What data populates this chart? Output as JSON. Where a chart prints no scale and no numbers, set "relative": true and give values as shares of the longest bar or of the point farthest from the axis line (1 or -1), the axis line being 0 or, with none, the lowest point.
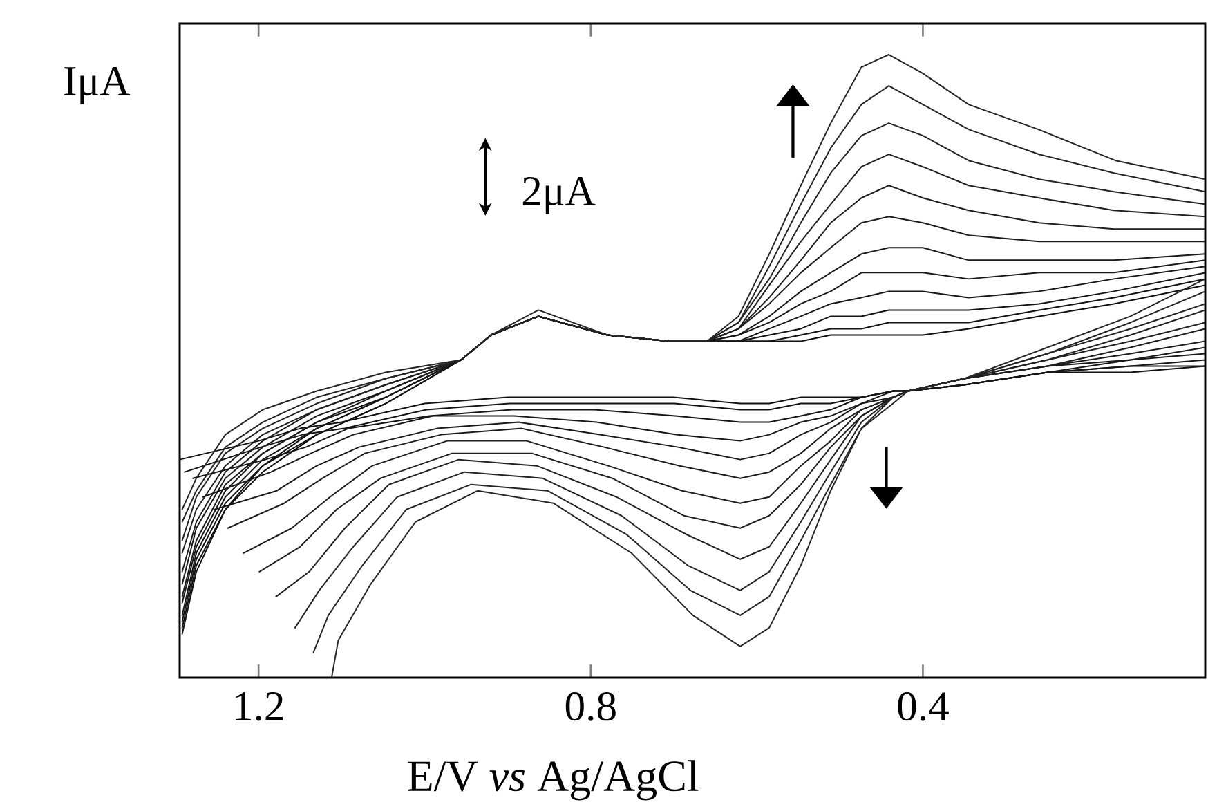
{
  "chart_data": {
    "type": "line",
    "relative": true,
    "xlabel": "E/V *vs* Ag/AgCl",
    "ylabel": "IμA",
    "xlim": [
      1.295,
      0.06
    ],
    "xticks": [
      1.2,
      0.8,
      0.4
    ],
    "annotations": [
      "2μA"
    ],
    "series": [
      {
        "color": "#101010",
        "x": [
          0.06,
          0.17,
          0.26,
          0.345,
          0.4,
          0.441,
          0.474,
          0.511,
          0.547,
          0.585,
          0.622,
          0.66,
          0.705,
          0.78,
          0.863,
          0.92,
          0.956,
          1.047,
          1.13,
          1.195,
          1.24,
          1.275,
          1.292
        ],
        "values": [
          0.63,
          0.6,
          0.58,
          0.56,
          0.55,
          0.55,
          0.55,
          0.55,
          0.54,
          0.54,
          0.54,
          0.54,
          0.54,
          0.55,
          0.58,
          0.55,
          0.51,
          0.44,
          0.39,
          0.33,
          0.27,
          0.17,
          0.07
        ]
      },
      {
        "color": "#111111",
        "x": [
          1.295,
          1.2,
          1.15,
          1.1,
          1.0,
          0.9,
          0.8,
          0.7,
          0.62,
          0.585,
          0.547,
          0.511,
          0.474,
          0.436,
          0.418,
          0.35,
          0.25,
          0.15,
          0.06
        ],
        "values": [
          0.35,
          0.38,
          0.4,
          0.41,
          0.44,
          0.45,
          0.45,
          0.45,
          0.44,
          0.44,
          0.45,
          0.45,
          0.45,
          0.46,
          0.46,
          0.47,
          0.49,
          0.49,
          0.5
        ]
      },
      {
        "color": "#121212",
        "x": [
          0.06,
          0.17,
          0.26,
          0.345,
          0.4,
          0.441,
          0.474,
          0.511,
          0.547,
          0.585,
          0.622,
          0.66,
          0.705,
          0.78,
          0.863,
          0.92,
          0.956,
          1.047,
          1.13,
          1.195,
          1.24,
          1.275,
          1.292
        ],
        "values": [
          0.64,
          0.61,
          0.59,
          0.57,
          0.57,
          0.57,
          0.56,
          0.56,
          0.55,
          0.54,
          0.54,
          0.54,
          0.54,
          0.55,
          0.58,
          0.55,
          0.51,
          0.44,
          0.39,
          0.34,
          0.27,
          0.18,
          0.08
        ]
      },
      {
        "color": "#131313",
        "x": [
          1.289,
          1.197,
          1.147,
          1.097,
          0.998,
          0.898,
          0.798,
          0.699,
          0.62,
          0.585,
          0.547,
          0.511,
          0.474,
          0.436,
          0.418,
          0.35,
          0.25,
          0.15,
          0.06
        ],
        "values": [
          0.33,
          0.37,
          0.39,
          0.4,
          0.43,
          0.44,
          0.44,
          0.44,
          0.43,
          0.43,
          0.44,
          0.44,
          0.45,
          0.46,
          0.46,
          0.47,
          0.49,
          0.5,
          0.5
        ]
      },
      {
        "color": "#141414",
        "x": [
          0.06,
          0.17,
          0.26,
          0.345,
          0.4,
          0.441,
          0.474,
          0.511,
          0.547,
          0.585,
          0.622,
          0.66,
          0.705,
          0.78,
          0.863,
          0.92,
          0.956,
          1.047,
          1.13,
          1.195,
          1.24,
          1.275,
          1.292
        ],
        "values": [
          0.65,
          0.62,
          0.6,
          0.59,
          0.59,
          0.59,
          0.58,
          0.58,
          0.56,
          0.55,
          0.54,
          0.54,
          0.54,
          0.55,
          0.58,
          0.55,
          0.51,
          0.45,
          0.4,
          0.34,
          0.28,
          0.19,
          0.09
        ]
      },
      {
        "color": "#151515",
        "x": [
          1.279,
          1.192,
          1.143,
          1.092,
          0.994,
          0.895,
          0.796,
          0.698,
          0.62,
          0.585,
          0.547,
          0.511,
          0.474,
          0.436,
          0.418,
          0.35,
          0.25,
          0.15,
          0.06
        ],
        "values": [
          0.32,
          0.35,
          0.37,
          0.4,
          0.42,
          0.43,
          0.43,
          0.42,
          0.41,
          0.41,
          0.42,
          0.43,
          0.45,
          0.46,
          0.46,
          0.47,
          0.49,
          0.5,
          0.51
        ]
      },
      {
        "color": "#161616",
        "x": [
          0.06,
          0.17,
          0.26,
          0.345,
          0.4,
          0.441,
          0.474,
          0.511,
          0.547,
          0.585,
          0.622,
          0.66,
          0.705,
          0.78,
          0.863,
          0.92,
          0.956,
          1.047,
          1.13,
          1.195,
          1.24,
          1.275,
          1.292
        ],
        "values": [
          0.66,
          0.64,
          0.62,
          0.61,
          0.62,
          0.62,
          0.61,
          0.6,
          0.58,
          0.56,
          0.54,
          0.54,
          0.54,
          0.55,
          0.58,
          0.55,
          0.51,
          0.45,
          0.4,
          0.35,
          0.29,
          0.2,
          0.1
        ]
      },
      {
        "color": "#171717",
        "x": [
          1.267,
          1.185,
          1.137,
          1.086,
          0.99,
          0.892,
          0.793,
          0.697,
          0.62,
          0.585,
          0.547,
          0.511,
          0.474,
          0.436,
          0.418,
          0.35,
          0.25,
          0.15,
          0.06
        ],
        "values": [
          0.29,
          0.33,
          0.36,
          0.39,
          0.42,
          0.42,
          0.41,
          0.39,
          0.38,
          0.39,
          0.41,
          0.42,
          0.44,
          0.46,
          0.46,
          0.47,
          0.49,
          0.51,
          0.52
        ]
      },
      {
        "color": "#181818",
        "x": [
          0.06,
          0.17,
          0.26,
          0.345,
          0.4,
          0.441,
          0.474,
          0.511,
          0.547,
          0.585,
          0.622,
          0.66,
          0.705,
          0.78,
          0.863,
          0.92,
          0.956,
          1.047,
          1.13,
          1.195,
          1.24,
          1.275,
          1.292
        ],
        "values": [
          0.67,
          0.65,
          0.65,
          0.64,
          0.65,
          0.65,
          0.65,
          0.62,
          0.6,
          0.57,
          0.55,
          0.54,
          0.54,
          0.55,
          0.58,
          0.55,
          0.51,
          0.45,
          0.41,
          0.36,
          0.3,
          0.21,
          0.12
        ]
      },
      {
        "color": "#191919",
        "x": [
          1.253,
          1.178,
          1.13,
          1.079,
          0.985,
          0.887,
          0.789,
          0.695,
          0.62,
          0.585,
          0.547,
          0.511,
          0.474,
          0.436,
          0.418,
          0.35,
          0.25,
          0.15,
          0.06
        ],
        "values": [
          0.27,
          0.3,
          0.34,
          0.37,
          0.4,
          0.41,
          0.39,
          0.37,
          0.35,
          0.36,
          0.39,
          0.41,
          0.44,
          0.45,
          0.46,
          0.48,
          0.5,
          0.51,
          0.53
        ]
      },
      {
        "color": "#1a1a1a",
        "x": [
          0.06,
          0.17,
          0.26,
          0.345,
          0.4,
          0.441,
          0.474,
          0.511,
          0.547,
          0.585,
          0.622,
          0.66,
          0.705,
          0.78,
          0.863,
          0.92,
          0.956,
          1.047,
          1.13,
          1.195,
          1.24,
          1.275,
          1.292
        ],
        "values": [
          0.68,
          0.67,
          0.67,
          0.67,
          0.69,
          0.69,
          0.68,
          0.65,
          0.62,
          0.58,
          0.55,
          0.54,
          0.54,
          0.55,
          0.58,
          0.55,
          0.51,
          0.46,
          0.41,
          0.36,
          0.31,
          0.22,
          0.13
        ]
      },
      {
        "color": "#1b1b1b",
        "x": [
          1.237,
          1.169,
          1.123,
          1.072,
          0.98,
          0.883,
          0.784,
          0.693,
          0.62,
          0.585,
          0.547,
          0.511,
          0.474,
          0.436,
          0.418,
          0.35,
          0.25,
          0.15,
          0.06
        ],
        "values": [
          0.24,
          0.28,
          0.32,
          0.36,
          0.39,
          0.4,
          0.37,
          0.34,
          0.32,
          0.33,
          0.36,
          0.4,
          0.43,
          0.45,
          0.46,
          0.48,
          0.5,
          0.52,
          0.54
        ]
      },
      {
        "color": "#1c1c1c",
        "x": [
          0.06,
          0.17,
          0.26,
          0.345,
          0.4,
          0.441,
          0.474,
          0.511,
          0.547,
          0.585,
          0.622,
          0.66,
          0.705,
          0.78,
          0.863,
          0.92,
          0.956,
          1.047,
          1.13,
          1.195,
          1.24,
          1.275,
          1.292
        ],
        "values": [
          0.7,
          0.7,
          0.7,
          0.71,
          0.73,
          0.74,
          0.73,
          0.69,
          0.65,
          0.6,
          0.56,
          0.54,
          0.54,
          0.55,
          0.58,
          0.55,
          0.51,
          0.46,
          0.42,
          0.37,
          0.32,
          0.24,
          0.15
        ]
      },
      {
        "color": "#1d1d1d",
        "x": [
          1.218,
          1.16,
          1.114,
          1.063,
          0.973,
          0.877,
          0.779,
          0.69,
          0.62,
          0.585,
          0.547,
          0.511,
          0.474,
          0.436,
          0.418,
          0.35,
          0.25,
          0.15,
          0.06
        ],
        "values": [
          0.2,
          0.24,
          0.29,
          0.34,
          0.38,
          0.38,
          0.34,
          0.3,
          0.28,
          0.29,
          0.34,
          0.38,
          0.43,
          0.45,
          0.46,
          0.48,
          0.5,
          0.53,
          0.56
        ]
      },
      {
        "color": "#1e1e1e",
        "x": [
          0.06,
          0.17,
          0.26,
          0.345,
          0.4,
          0.441,
          0.474,
          0.511,
          0.547,
          0.585,
          0.622,
          0.66,
          0.705,
          0.78,
          0.863,
          0.92,
          0.956,
          1.047,
          1.13,
          1.195,
          1.24,
          1.275,
          1.292
        ],
        "values": [
          0.72,
          0.72,
          0.73,
          0.75,
          0.77,
          0.79,
          0.77,
          0.73,
          0.67,
          0.61,
          0.56,
          0.54,
          0.54,
          0.55,
          0.58,
          0.55,
          0.51,
          0.47,
          0.43,
          0.38,
          0.33,
          0.25,
          0.17
        ]
      },
      {
        "color": "#1f1f1f",
        "x": [
          1.199,
          1.15,
          1.106,
          1.053,
          0.967,
          0.871,
          0.774,
          0.688,
          0.62,
          0.585,
          0.547,
          0.511,
          0.474,
          0.436,
          0.418,
          0.35,
          0.25,
          0.15,
          0.06
        ],
        "values": [
          0.17,
          0.21,
          0.27,
          0.32,
          0.36,
          0.36,
          0.32,
          0.26,
          0.24,
          0.26,
          0.31,
          0.37,
          0.42,
          0.45,
          0.46,
          0.48,
          0.51,
          0.54,
          0.57
        ]
      },
      {
        "color": "#202020",
        "x": [
          0.06,
          0.17,
          0.26,
          0.345,
          0.4,
          0.441,
          0.474,
          0.511,
          0.547,
          0.585,
          0.622,
          0.66,
          0.705,
          0.78,
          0.863,
          0.92,
          0.956,
          1.047,
          1.13,
          1.195,
          1.24,
          1.275,
          1.292
        ],
        "values": [
          0.74,
          0.75,
          0.77,
          0.79,
          0.82,
          0.84,
          0.82,
          0.76,
          0.7,
          0.63,
          0.56,
          0.54,
          0.54,
          0.55,
          0.58,
          0.55,
          0.51,
          0.47,
          0.43,
          0.39,
          0.34,
          0.27,
          0.2
        ]
      },
      {
        "color": "#212121",
        "x": [
          1.179,
          1.139,
          1.096,
          1.043,
          0.959,
          0.865,
          0.769,
          0.685,
          0.62,
          0.585,
          0.547,
          0.511,
          0.474,
          0.436,
          0.418,
          0.35,
          0.25,
          0.15,
          0.06
        ],
        "values": [
          0.13,
          0.17,
          0.24,
          0.31,
          0.35,
          0.34,
          0.29,
          0.23,
          0.19,
          0.21,
          0.28,
          0.35,
          0.42,
          0.45,
          0.46,
          0.48,
          0.51,
          0.55,
          0.59
        ]
      },
      {
        "color": "#222222",
        "x": [
          0.06,
          0.17,
          0.26,
          0.345,
          0.4,
          0.441,
          0.474,
          0.511,
          0.547,
          0.585,
          0.622,
          0.66,
          0.705,
          0.78,
          0.863,
          0.92,
          0.956,
          1.047,
          1.13,
          1.195,
          1.24,
          1.275,
          1.292
        ],
        "values": [
          0.76,
          0.78,
          0.8,
          0.83,
          0.87,
          0.89,
          0.87,
          0.81,
          0.73,
          0.64,
          0.57,
          0.54,
          0.54,
          0.55,
          0.58,
          0.55,
          0.51,
          0.48,
          0.44,
          0.4,
          0.36,
          0.29,
          0.22
        ]
      },
      {
        "color": "#232323",
        "x": [
          1.156,
          1.127,
          1.086,
          1.033,
          0.952,
          0.858,
          0.763,
          0.683,
          0.62,
          0.585,
          0.547,
          0.511,
          0.474,
          0.436,
          0.418,
          0.35,
          0.25,
          0.15,
          0.06
        ],
        "values": [
          0.08,
          0.14,
          0.21,
          0.29,
          0.33,
          0.32,
          0.26,
          0.18,
          0.14,
          0.17,
          0.25,
          0.33,
          0.41,
          0.45,
          0.46,
          0.48,
          0.52,
          0.56,
          0.6
        ]
      },
      {
        "color": "#242424",
        "x": [
          0.06,
          0.17,
          0.26,
          0.345,
          0.4,
          0.441,
          0.474,
          0.511,
          0.547,
          0.585,
          0.622,
          0.66,
          0.705,
          0.78,
          0.863,
          0.92,
          0.956,
          1.047,
          1.13,
          1.195,
          1.24,
          1.275,
          1.292
        ],
        "values": [
          0.78,
          0.81,
          0.84,
          0.88,
          0.92,
          0.95,
          0.92,
          0.85,
          0.76,
          0.66,
          0.57,
          0.54,
          0.54,
          0.55,
          0.58,
          0.55,
          0.51,
          0.48,
          0.45,
          0.41,
          0.37,
          0.3,
          0.25
        ]
      },
      {
        "color": "#252525",
        "x": [
          1.134,
          1.116,
          1.075,
          1.022,
          0.944,
          0.852,
          0.757,
          0.68,
          0.62,
          0.585,
          0.547,
          0.511,
          0.474,
          0.436,
          0.418,
          0.35,
          0.25,
          0.15,
          0.06
        ],
        "values": [
          0.04,
          0.1,
          0.18,
          0.27,
          0.31,
          0.3,
          0.23,
          0.14,
          0.1,
          0.13,
          0.22,
          0.31,
          0.4,
          0.45,
          0.46,
          0.48,
          0.52,
          0.57,
          0.62
        ]
      },
      {
        "color": "#262626",
        "x": [
          0.06,
          0.168,
          0.261,
          0.345,
          0.4,
          0.441,
          0.474,
          0.511,
          0.547,
          0.585,
          0.622,
          0.66,
          0.705,
          0.78,
          0.863,
          0.92,
          0.956,
          1.047,
          1.13,
          1.195,
          1.24,
          1.275,
          1.292
        ],
        "values": [
          0.8,
          0.83,
          0.88,
          0.92,
          0.97,
          1.0,
          0.98,
          0.89,
          0.79,
          0.68,
          0.58,
          0.54,
          0.54,
          0.55,
          0.59,
          0.55,
          0.51,
          0.49,
          0.46,
          0.43,
          0.39,
          0.32,
          0.27
        ]
      },
      {
        "color": "#272727",
        "x": [
          1.112,
          1.104,
          1.065,
          1.011,
          0.936,
          0.845,
          0.751,
          0.677,
          0.62,
          0.585,
          0.547,
          0.511,
          0.474,
          0.436,
          0.418,
          0.35,
          0.25,
          0.15,
          0.06
        ],
        "values": [
          0.0,
          0.06,
          0.15,
          0.25,
          0.3,
          0.28,
          0.2,
          0.1,
          0.05,
          0.08,
          0.18,
          0.3,
          0.4,
          0.44,
          0.46,
          0.48,
          0.53,
          0.58,
          0.64
        ]
      }
    ]
  }
}
